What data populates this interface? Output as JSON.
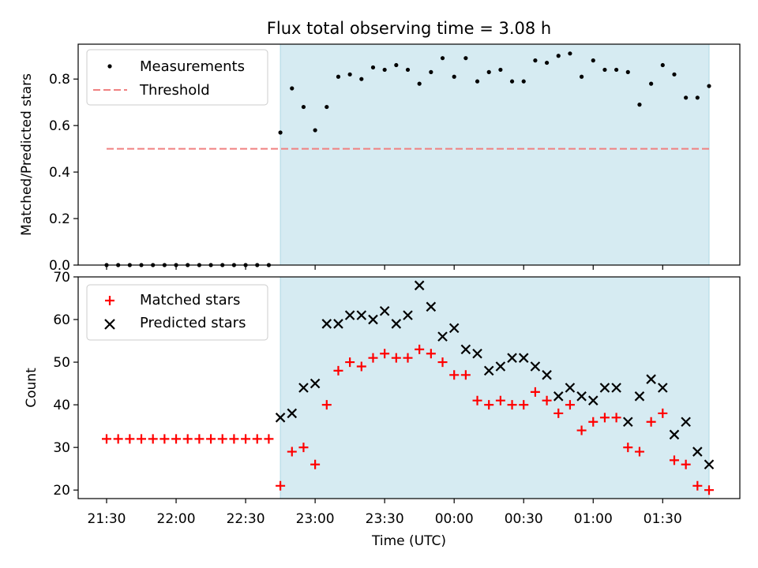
{
  "chart_data": [
    {
      "type": "scatter",
      "title": "Flux total observing time = 3.08 h",
      "xlabel": "",
      "ylabel": "Matched/Predicted stars",
      "ylim": [
        0,
        0.95
      ],
      "yticks": [
        "0.0",
        "0.2",
        "0.4",
        "0.6",
        "0.8"
      ],
      "shaded_region": {
        "start": "22:45",
        "end": "01:50",
        "color": "#add8e6"
      },
      "legend": {
        "position": "upper-left",
        "entries": [
          "Measurements",
          "Threshold"
        ]
      },
      "series": [
        {
          "name": "Measurements",
          "marker": "dot",
          "color": "#000000",
          "x": [
            "21:30",
            "21:35",
            "21:40",
            "21:45",
            "21:50",
            "21:55",
            "22:00",
            "22:05",
            "22:10",
            "22:15",
            "22:20",
            "22:25",
            "22:30",
            "22:35",
            "22:40",
            "22:45",
            "22:50",
            "22:55",
            "23:00",
            "23:05",
            "23:10",
            "23:15",
            "23:20",
            "23:25",
            "23:30",
            "23:35",
            "23:40",
            "23:45",
            "23:50",
            "23:55",
            "00:00",
            "00:05",
            "00:10",
            "00:15",
            "00:20",
            "00:25",
            "00:30",
            "00:35",
            "00:40",
            "00:45",
            "00:50",
            "00:55",
            "01:00",
            "01:05",
            "01:10",
            "01:15",
            "01:20",
            "01:25",
            "01:30",
            "01:35",
            "01:40",
            "01:45",
            "01:50"
          ],
          "y": [
            0,
            0,
            0,
            0,
            0,
            0,
            0,
            0,
            0,
            0,
            0,
            0,
            0,
            0,
            0,
            0.57,
            0.76,
            0.68,
            0.58,
            0.68,
            0.81,
            0.82,
            0.8,
            0.85,
            0.84,
            0.86,
            0.84,
            0.78,
            0.83,
            0.89,
            0.81,
            0.89,
            0.79,
            0.83,
            0.84,
            0.79,
            0.79,
            0.88,
            0.87,
            0.9,
            0.91,
            0.81,
            0.88,
            0.84,
            0.84,
            0.83,
            0.69,
            0.78,
            0.86,
            0.82,
            0.72,
            0.72,
            0.77
          ]
        },
        {
          "name": "Threshold",
          "marker": "dashed-line",
          "color": "#f08080",
          "x": [
            "21:30",
            "01:50"
          ],
          "y": [
            0.5,
            0.5
          ]
        }
      ]
    },
    {
      "type": "scatter",
      "xlabel": "Time (UTC)",
      "ylabel": "Count",
      "ylim": [
        18,
        70
      ],
      "yticks": [
        "20",
        "30",
        "40",
        "50",
        "60",
        "70"
      ],
      "xticks": [
        "21:30",
        "22:00",
        "22:30",
        "23:00",
        "23:30",
        "00:00",
        "00:30",
        "01:00",
        "01:30"
      ],
      "shaded_region": {
        "start": "22:45",
        "end": "01:50",
        "color": "#add8e6"
      },
      "legend": {
        "position": "upper-left",
        "entries": [
          "Matched stars",
          "Predicted stars"
        ]
      },
      "series": [
        {
          "name": "Matched stars",
          "marker": "plus",
          "color": "#ff0000",
          "x": [
            "21:30",
            "21:35",
            "21:40",
            "21:45",
            "21:50",
            "21:55",
            "22:00",
            "22:05",
            "22:10",
            "22:15",
            "22:20",
            "22:25",
            "22:30",
            "22:35",
            "22:40",
            "22:45",
            "22:50",
            "22:55",
            "23:00",
            "23:05",
            "23:10",
            "23:15",
            "23:20",
            "23:25",
            "23:30",
            "23:35",
            "23:40",
            "23:45",
            "23:50",
            "23:55",
            "00:00",
            "00:05",
            "00:10",
            "00:15",
            "00:20",
            "00:25",
            "00:30",
            "00:35",
            "00:40",
            "00:45",
            "00:50",
            "00:55",
            "01:00",
            "01:05",
            "01:10",
            "01:15",
            "01:20",
            "01:25",
            "01:30",
            "01:35",
            "01:40",
            "01:45",
            "01:50"
          ],
          "y": [
            32,
            32,
            32,
            32,
            32,
            32,
            32,
            32,
            32,
            32,
            32,
            32,
            32,
            32,
            32,
            21,
            29,
            30,
            26,
            40,
            48,
            50,
            49,
            51,
            52,
            51,
            51,
            53,
            52,
            50,
            47,
            47,
            41,
            40,
            41,
            40,
            40,
            43,
            41,
            38,
            40,
            34,
            36,
            37,
            37,
            30,
            29,
            36,
            38,
            27,
            26,
            21,
            20
          ]
        },
        {
          "name": "Predicted stars",
          "marker": "x",
          "color": "#000000",
          "x": [
            "22:45",
            "22:50",
            "22:55",
            "23:00",
            "23:05",
            "23:10",
            "23:15",
            "23:20",
            "23:25",
            "23:30",
            "23:35",
            "23:40",
            "23:45",
            "23:50",
            "23:55",
            "00:00",
            "00:05",
            "00:10",
            "00:15",
            "00:20",
            "00:25",
            "00:30",
            "00:35",
            "00:40",
            "00:45",
            "00:50",
            "00:55",
            "01:00",
            "01:05",
            "01:10",
            "01:15",
            "01:20",
            "01:25",
            "01:30",
            "01:35",
            "01:40",
            "01:45",
            "01:50"
          ],
          "y": [
            37,
            38,
            44,
            45,
            59,
            59,
            61,
            61,
            60,
            62,
            59,
            61,
            68,
            63,
            56,
            58,
            53,
            52,
            48,
            49,
            51,
            51,
            49,
            47,
            42,
            44,
            42,
            41,
            44,
            44,
            36,
            42,
            46,
            44,
            33,
            36,
            29,
            26
          ]
        }
      ]
    }
  ]
}
